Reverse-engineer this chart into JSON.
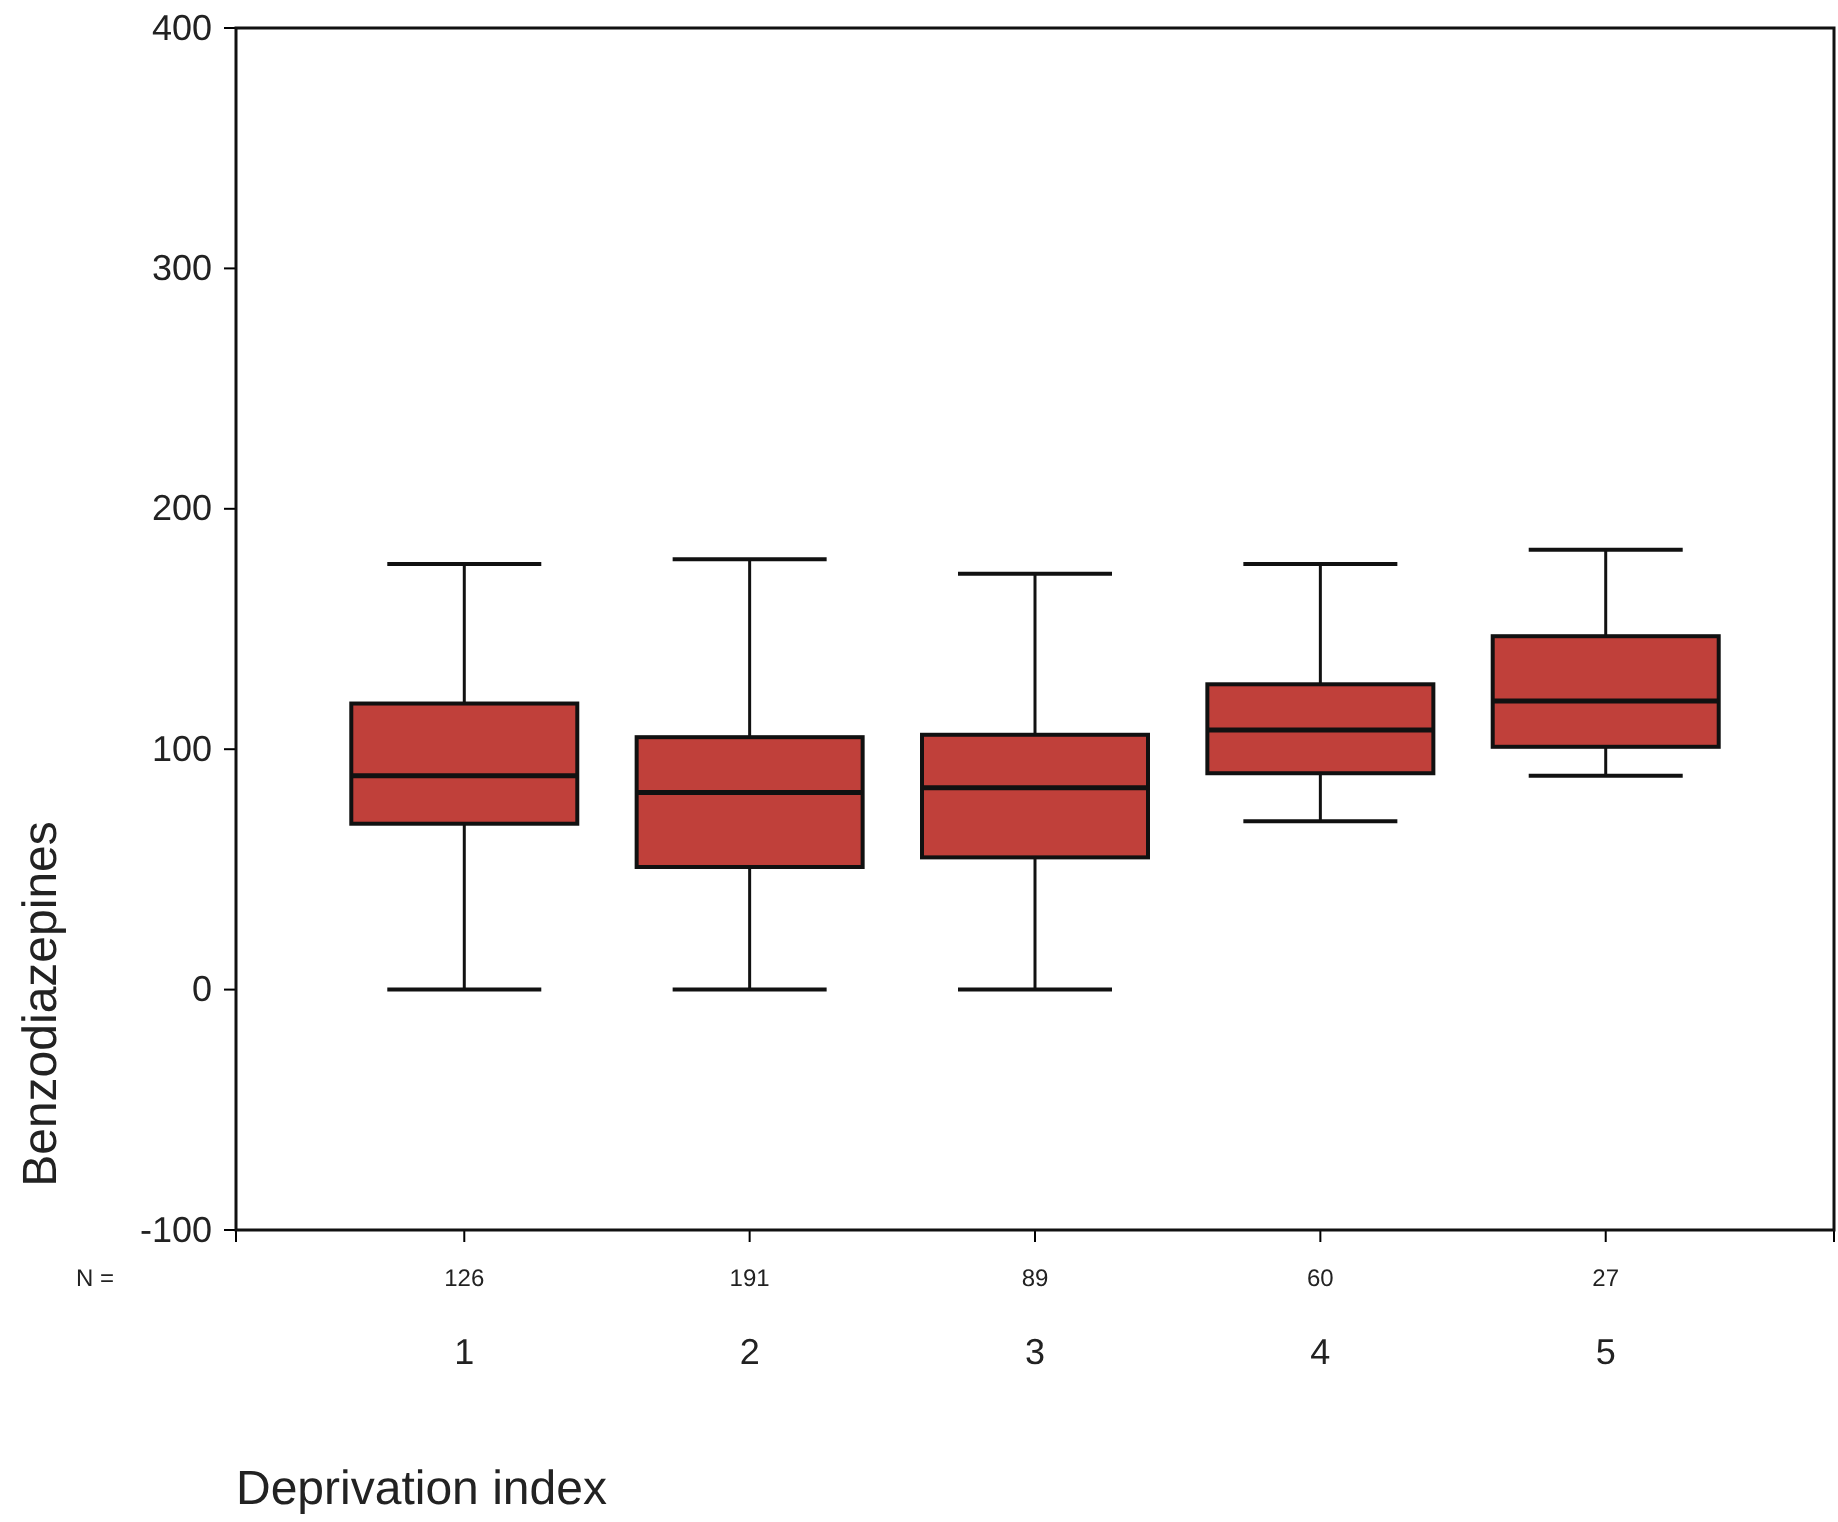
{
  "chart_data": {
    "type": "box",
    "xlabel": "Deprivation index",
    "ylabel": "Benzodiazepines",
    "categories": [
      "1",
      "2",
      "3",
      "4",
      "5"
    ],
    "color": "#c0403a",
    "boxes": [
      {
        "low": 0,
        "q1": 69,
        "median": 89,
        "q3": 119,
        "high": 177
      },
      {
        "low": 0,
        "q1": 51,
        "median": 82,
        "q3": 105,
        "high": 179
      },
      {
        "low": 0,
        "q1": 55,
        "median": 84,
        "q3": 106,
        "high": 173
      },
      {
        "low": 70,
        "q1": 90,
        "median": 108,
        "q3": 127,
        "high": 177
      },
      {
        "low": 89,
        "q1": 101,
        "median": 120,
        "q3": 147,
        "high": 183
      }
    ],
    "ylim": [
      -100,
      400
    ],
    "yticks": [
      -100,
      0,
      100,
      200,
      300,
      400
    ],
    "grid": false,
    "annotations": [
      "N =",
      {
        "text": "126",
        "x": "1"
      },
      {
        "text": "191",
        "x": "2"
      },
      {
        "text": "89",
        "x": "3"
      },
      {
        "text": "60",
        "x": "4"
      },
      {
        "text": "27",
        "x": "5"
      }
    ]
  }
}
